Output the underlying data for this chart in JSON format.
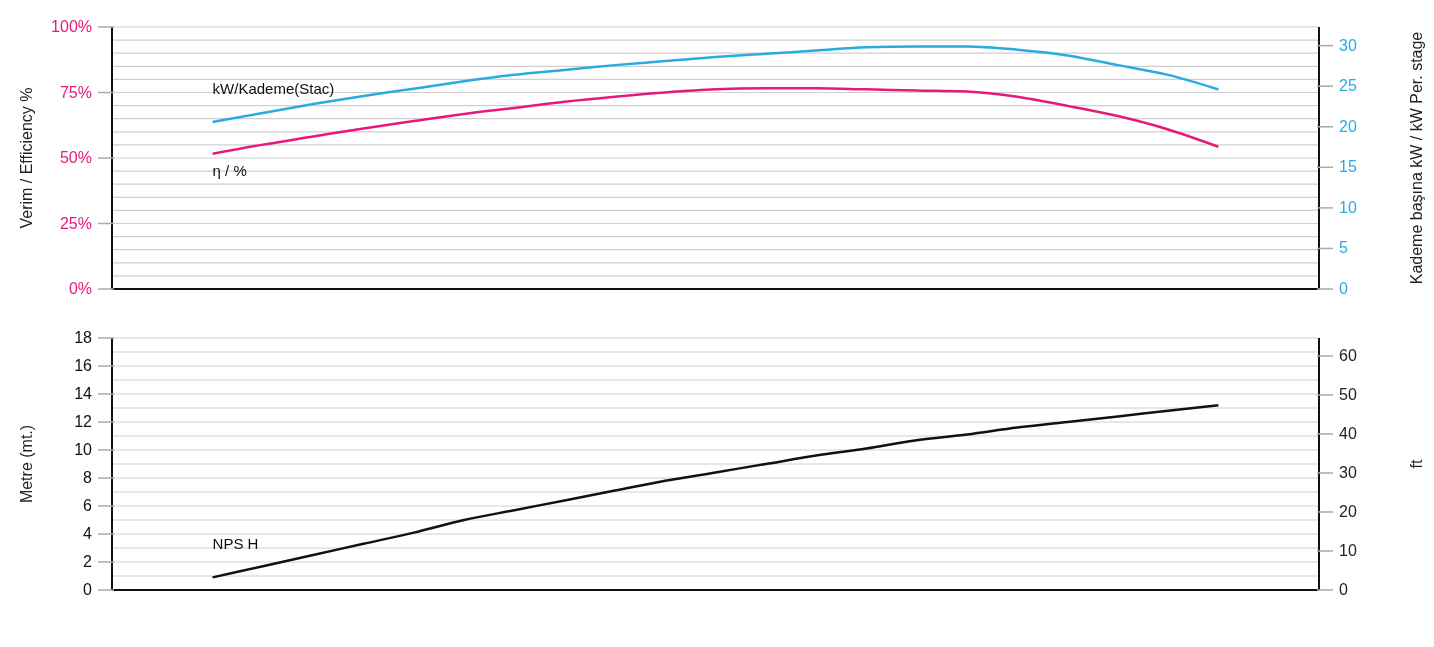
{
  "chart_data": [
    {
      "type": "line",
      "ylabel": "Verim / Efficiency %",
      "y2label": "Kademe başına kW / kW Per. stage",
      "grid": true,
      "categories": [
        null,
        null,
        null,
        null,
        null,
        null,
        null,
        null,
        null,
        null,
        null,
        null,
        null,
        null,
        null,
        null,
        null,
        null,
        null,
        null,
        null,
        null,
        null,
        null,
        null
      ],
      "series": [
        {
          "name": "kW/Kademe(Stac)",
          "color": "#29abe2",
          "axis": "y2",
          "values": [
            null,
            null,
            20.6,
            21.7,
            22.8,
            23.8,
            24.7,
            25.6,
            26.4,
            27.0,
            27.6,
            28.1,
            28.6,
            29.0,
            29.4,
            29.8,
            29.9,
            29.9,
            29.5,
            28.8,
            27.6,
            26.4,
            24.6,
            null,
            null
          ]
        },
        {
          "name": "η / %",
          "color": "#e6197a",
          "axis": "y",
          "values": [
            null,
            null,
            51.6,
            55.1,
            58.2,
            61.3,
            64.1,
            66.8,
            69.1,
            71.5,
            73.4,
            75.0,
            76.2,
            76.6,
            76.6,
            76.2,
            75.8,
            75.4,
            73.4,
            69.9,
            66.0,
            60.9,
            54.3,
            null,
            null
          ]
        }
      ],
      "ylim": [
        0,
        100
      ],
      "yticks": [
        {
          "value": 0,
          "label": "0%"
        },
        {
          "value": 5,
          "label": null
        },
        {
          "value": 10,
          "label": null
        },
        {
          "value": 15,
          "label": null
        },
        {
          "value": 20,
          "label": null
        },
        {
          "value": 25,
          "label": "25%"
        },
        {
          "value": 30,
          "label": null
        },
        {
          "value": 35,
          "label": null
        },
        {
          "value": 40,
          "label": null
        },
        {
          "value": 45,
          "label": null
        },
        {
          "value": 50,
          "label": "50%"
        },
        {
          "value": 55,
          "label": null
        },
        {
          "value": 60,
          "label": null
        },
        {
          "value": 65,
          "label": null
        },
        {
          "value": 70,
          "label": null
        },
        {
          "value": 75,
          "label": "75%"
        },
        {
          "value": 80,
          "label": null
        },
        {
          "value": 85,
          "label": null
        },
        {
          "value": 90,
          "label": null
        },
        {
          "value": 95,
          "label": null
        },
        {
          "value": 100,
          "label": "100%"
        }
      ],
      "y2lim": [
        0,
        32.3
      ],
      "y2ticks": [
        0,
        5,
        10,
        15,
        20,
        25,
        30
      ]
    },
    {
      "type": "line",
      "ylabel": "Metre (mt.)",
      "y2label": "ft",
      "grid": true,
      "categories": [
        null,
        null,
        null,
        null,
        null,
        null,
        null,
        null,
        null,
        null,
        null,
        null,
        null,
        null,
        null,
        null,
        null,
        null,
        null,
        null,
        null,
        null,
        null,
        null,
        null
      ],
      "series": [
        {
          "name": "NPS H",
          "color": "#111111",
          "axis": "y",
          "values": [
            null,
            null,
            0.9,
            1.7,
            2.5,
            3.3,
            4.1,
            5.0,
            5.7,
            6.4,
            7.1,
            7.8,
            8.4,
            9.0,
            9.6,
            10.1,
            10.7,
            11.1,
            11.6,
            12.0,
            12.4,
            12.8,
            13.2,
            null,
            null
          ]
        }
      ],
      "ylim": [
        0,
        18
      ],
      "yticks": [
        0,
        {
          "value": 1,
          "label": null
        },
        2,
        {
          "value": 3,
          "label": null
        },
        4,
        {
          "value": 5,
          "label": null
        },
        6,
        {
          "value": 7,
          "label": null
        },
        8,
        {
          "value": 9,
          "label": null
        },
        10,
        {
          "value": 11,
          "label": null
        },
        12,
        {
          "value": 13,
          "label": null
        },
        14,
        {
          "value": 15,
          "label": null
        },
        16,
        {
          "value": 17,
          "label": null
        },
        18
      ],
      "y2lim": [
        0,
        64.6
      ],
      "y2ticks": [
        0,
        10,
        20,
        30,
        40,
        50,
        60
      ]
    }
  ]
}
